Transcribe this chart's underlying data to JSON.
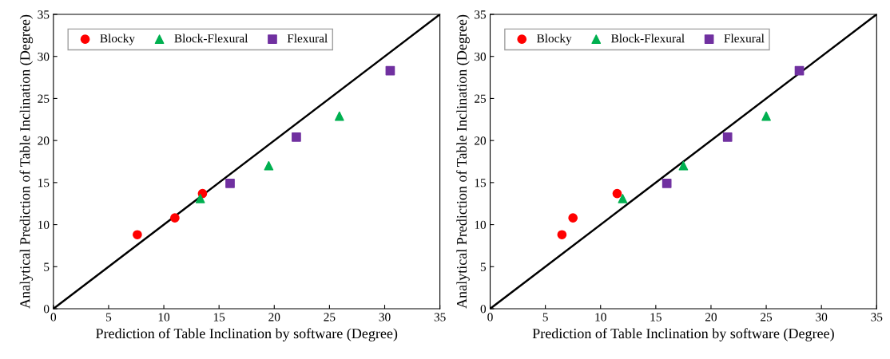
{
  "chart_data": [
    {
      "type": "scatter",
      "xlabel": "Prediction of Table Inclination by software (Degree)",
      "ylabel": "Analytical Prediction of Table Inclination (Degree)",
      "xlim": [
        0,
        35
      ],
      "ylim": [
        0,
        35
      ],
      "xticks": [
        0,
        5,
        10,
        15,
        20,
        25,
        30,
        35
      ],
      "yticks": [
        0,
        5,
        10,
        15,
        20,
        25,
        30,
        35
      ],
      "grid": false,
      "legend": "top left",
      "series": [
        {
          "type": "line",
          "x": [
            0,
            35
          ],
          "values": [
            0,
            35
          ],
          "color": "#000000",
          "line_style": "solid",
          "marker": "none"
        },
        {
          "name": "Blocky",
          "color": "#ff0000",
          "marker": "circle",
          "x": [
            7.6,
            11,
            13.5
          ],
          "values": [
            8.8,
            10.8,
            13.7
          ]
        },
        {
          "name": "Block-Flexural",
          "color": "#00b050",
          "marker": "triangle",
          "x": [
            13.3,
            19.5,
            25.9
          ],
          "values": [
            13.1,
            17.0,
            22.9
          ]
        },
        {
          "name": "Flexural",
          "color": "#7030a0",
          "marker": "square",
          "x": [
            16,
            22,
            30.5
          ],
          "values": [
            14.9,
            20.4,
            28.3
          ]
        }
      ]
    },
    {
      "type": "scatter",
      "xlabel": "Prediction of Table Inclination by software (Degree)",
      "ylabel": "Analytical Prediction of Table Inclination (Degree)",
      "xlim": [
        0,
        35
      ],
      "ylim": [
        0,
        35
      ],
      "xticks": [
        0,
        5,
        10,
        15,
        20,
        25,
        30,
        35
      ],
      "yticks": [
        0,
        5,
        10,
        15,
        20,
        25,
        30,
        35
      ],
      "grid": false,
      "legend": "top left",
      "series": [
        {
          "type": "line",
          "x": [
            0,
            35
          ],
          "values": [
            0,
            35
          ],
          "color": "#000000",
          "line_style": "solid",
          "marker": "none"
        },
        {
          "name": "Blocky",
          "color": "#ff0000",
          "marker": "circle",
          "x": [
            6.5,
            7.5,
            11.5
          ],
          "values": [
            8.8,
            10.8,
            13.7
          ]
        },
        {
          "name": "Block-Flexural",
          "color": "#00b050",
          "marker": "triangle",
          "x": [
            12,
            17.5,
            25
          ],
          "values": [
            13.1,
            17.0,
            22.9
          ]
        },
        {
          "name": "Flexural",
          "color": "#7030a0",
          "marker": "square",
          "x": [
            16,
            21.5,
            28
          ],
          "values": [
            14.9,
            20.4,
            28.3
          ]
        }
      ]
    }
  ]
}
